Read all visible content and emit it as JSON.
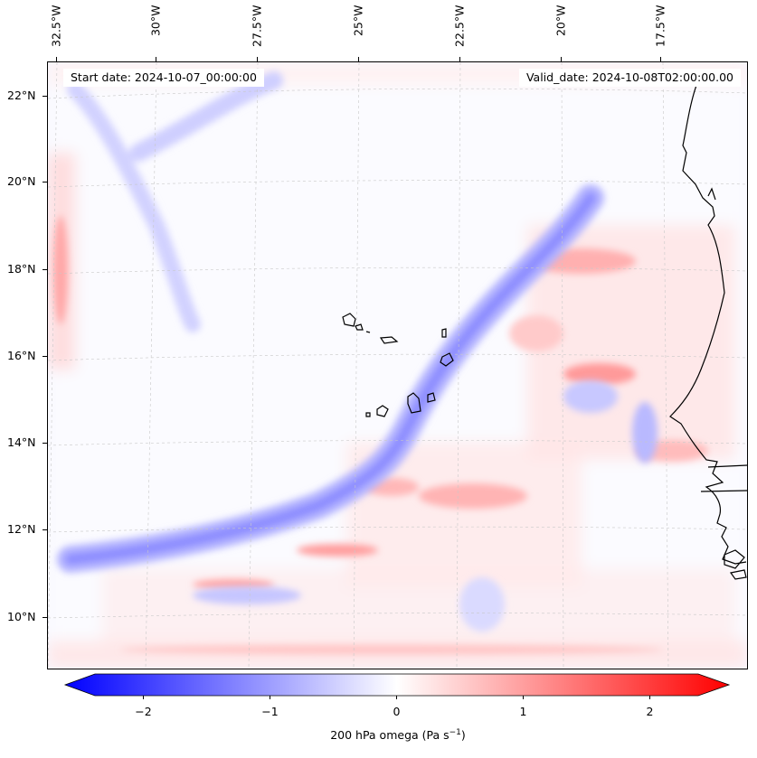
{
  "map": {
    "start_label": "Start date: 2024-10-07_00:00:00",
    "valid_label": "Valid_date: 2024-10-08T02:00:00.00",
    "lon_ticks": [
      "32.5°W",
      "30°W",
      "27.5°W",
      "25°W",
      "22.5°W",
      "20°W",
      "17.5°W"
    ],
    "lat_ticks": [
      "22°N",
      "20°N",
      "18°N",
      "16°N",
      "14°N",
      "12°N",
      "10°N"
    ],
    "lon_range": [
      -33.0,
      -15.5
    ],
    "lat_range": [
      8.9,
      22.8
    ],
    "field": "200 hPa omega",
    "coastline_color": "#000000",
    "gridline_color": "#c8c8c8"
  },
  "colorbar": {
    "label_prefix": "200 hPa omega (Pa s",
    "label_exp": "−1",
    "label_suffix": ")",
    "ticks": [
      "−2",
      "−1",
      "0",
      "1",
      "2"
    ],
    "tick_values": [
      -2,
      -1,
      0,
      1,
      2
    ],
    "vmin": -2.5,
    "vmax": 2.5,
    "colormap": "bwr",
    "color_min": "#0000ff",
    "color_mid": "#ffffff",
    "color_max": "#ff0000"
  }
}
